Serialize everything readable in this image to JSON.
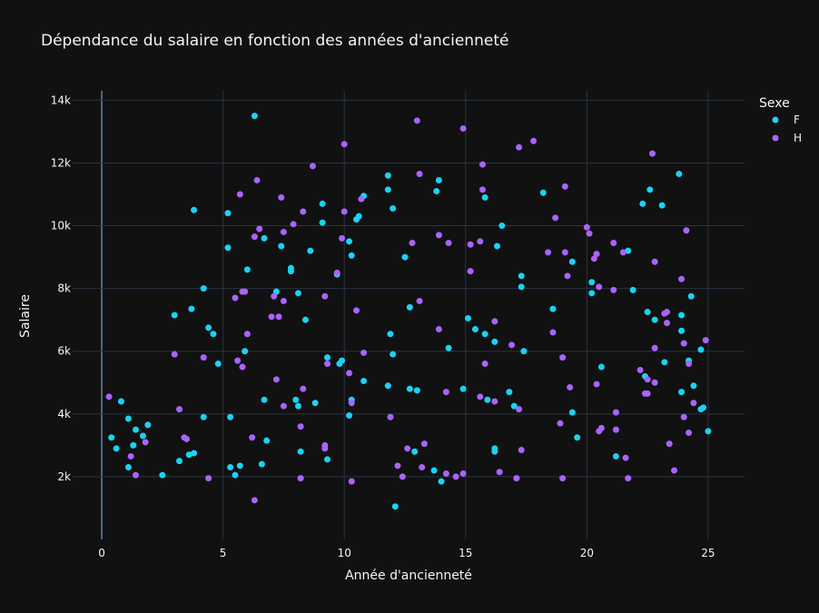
{
  "chart_data": {
    "type": "scatter",
    "title": "Dépendance du salaire en fonction des années d'ancienneté",
    "xlabel": "Année d'ancienneté",
    "ylabel": "Salaire",
    "xlim": [
      -1.2,
      26.5
    ],
    "ylim": [
      0,
      14300
    ],
    "x_ticks": [
      0,
      5,
      10,
      15,
      20,
      25
    ],
    "x_tick_labels": [
      "0",
      "5",
      "10",
      "15",
      "20",
      "25"
    ],
    "y_ticks": [
      2000,
      4000,
      6000,
      8000,
      10000,
      12000,
      14000
    ],
    "y_tick_labels": [
      "2k",
      "4k",
      "6k",
      "8k",
      "10k",
      "12k",
      "14k"
    ],
    "grid": true,
    "legend": {
      "title": "Sexe",
      "placement": "top-right"
    },
    "series": [
      {
        "name": "F",
        "color": "#19d3f3",
        "points": [
          [
            0.4,
            3250
          ],
          [
            0.6,
            2900
          ],
          [
            0.8,
            4400
          ],
          [
            1.1,
            3850
          ],
          [
            1.1,
            2300
          ],
          [
            1.3,
            3000
          ],
          [
            1.4,
            3500
          ],
          [
            1.7,
            3300
          ],
          [
            1.9,
            3650
          ],
          [
            2.5,
            2050
          ],
          [
            3,
            7150
          ],
          [
            3.2,
            2500
          ],
          [
            3.6,
            2700
          ],
          [
            3.7,
            7350
          ],
          [
            3.8,
            10500
          ],
          [
            3.8,
            2750
          ],
          [
            4.2,
            8000
          ],
          [
            4.2,
            3900
          ],
          [
            4.4,
            6750
          ],
          [
            4.6,
            6550
          ],
          [
            4.8,
            5600
          ],
          [
            5.2,
            10400
          ],
          [
            5.2,
            9300
          ],
          [
            5.3,
            3900
          ],
          [
            5.3,
            2300
          ],
          [
            5.5,
            2050
          ],
          [
            5.7,
            2350
          ],
          [
            5.9,
            6000
          ],
          [
            6,
            8600
          ],
          [
            6.3,
            13500
          ],
          [
            6.6,
            2400
          ],
          [
            6.7,
            9600
          ],
          [
            6.7,
            4450
          ],
          [
            6.8,
            3150
          ],
          [
            7.2,
            7900
          ],
          [
            7.4,
            9350
          ],
          [
            7.8,
            8650
          ],
          [
            7.8,
            8550
          ],
          [
            8,
            4450
          ],
          [
            8.1,
            7850
          ],
          [
            8.1,
            4250
          ],
          [
            8.2,
            2800
          ],
          [
            8.4,
            7000
          ],
          [
            8.6,
            9200
          ],
          [
            8.8,
            4350
          ],
          [
            9.1,
            10700
          ],
          [
            9.1,
            10100
          ],
          [
            9.3,
            5800
          ],
          [
            9.3,
            2550
          ],
          [
            9.7,
            8450
          ],
          [
            9.8,
            5600
          ],
          [
            9.9,
            5700
          ],
          [
            10.2,
            9500
          ],
          [
            10.2,
            3950
          ],
          [
            10.3,
            9050
          ],
          [
            10.3,
            4450
          ],
          [
            10.5,
            10200
          ],
          [
            10.6,
            10300
          ],
          [
            10.8,
            10950
          ],
          [
            10.8,
            5050
          ],
          [
            11.8,
            11600
          ],
          [
            11.8,
            11150
          ],
          [
            11.8,
            4900
          ],
          [
            11.9,
            6550
          ],
          [
            12,
            10550
          ],
          [
            12,
            5900
          ],
          [
            12.1,
            1050
          ],
          [
            12.5,
            9000
          ],
          [
            12.7,
            7400
          ],
          [
            12.7,
            4800
          ],
          [
            12.9,
            2800
          ],
          [
            13,
            4750
          ],
          [
            13.7,
            2200
          ],
          [
            13.8,
            11100
          ],
          [
            13.9,
            11450
          ],
          [
            14,
            1850
          ],
          [
            14.3,
            6100
          ],
          [
            14.9,
            4800
          ],
          [
            15.1,
            7050
          ],
          [
            15.4,
            6700
          ],
          [
            15.8,
            6550
          ],
          [
            15.8,
            10900
          ],
          [
            15.9,
            4450
          ],
          [
            16.2,
            6300
          ],
          [
            16.2,
            2900
          ],
          [
            16.2,
            2800
          ],
          [
            16.3,
            9350
          ],
          [
            16.5,
            10000
          ],
          [
            16.8,
            4700
          ],
          [
            17,
            4250
          ],
          [
            17.3,
            8400
          ],
          [
            17.3,
            8050
          ],
          [
            17.4,
            6000
          ],
          [
            18.2,
            11050
          ],
          [
            18.6,
            7350
          ],
          [
            19.4,
            4050
          ],
          [
            19.4,
            8850
          ],
          [
            19.6,
            3250
          ],
          [
            20.2,
            8200
          ],
          [
            20.2,
            7850
          ],
          [
            20.6,
            5500
          ],
          [
            21.2,
            2650
          ],
          [
            21.7,
            9200
          ],
          [
            21.9,
            7950
          ],
          [
            22.3,
            10700
          ],
          [
            22.4,
            5200
          ],
          [
            22.5,
            7250
          ],
          [
            22.6,
            11150
          ],
          [
            22.8,
            7000
          ],
          [
            23.1,
            10650
          ],
          [
            23.2,
            5650
          ],
          [
            23.8,
            11650
          ],
          [
            23.9,
            7150
          ],
          [
            23.9,
            4700
          ],
          [
            23.9,
            6650
          ],
          [
            24.2,
            5700
          ],
          [
            24.3,
            7750
          ],
          [
            24.4,
            4900
          ],
          [
            24.7,
            6050
          ],
          [
            24.7,
            4150
          ],
          [
            24.8,
            4200
          ],
          [
            25,
            3450
          ]
        ]
      },
      {
        "name": "H",
        "color": "#ab63fa",
        "points": [
          [
            0.3,
            4550
          ],
          [
            1.2,
            2650
          ],
          [
            1.4,
            2050
          ],
          [
            1.8,
            3100
          ],
          [
            3,
            5900
          ],
          [
            3.2,
            4150
          ],
          [
            3.4,
            3250
          ],
          [
            3.5,
            3200
          ],
          [
            4.2,
            5800
          ],
          [
            4.4,
            1950
          ],
          [
            5.5,
            7700
          ],
          [
            5.6,
            5700
          ],
          [
            5.7,
            11000
          ],
          [
            5.8,
            5500
          ],
          [
            5.8,
            7900
          ],
          [
            5.9,
            7900
          ],
          [
            6,
            6550
          ],
          [
            6.2,
            3250
          ],
          [
            6.3,
            1250
          ],
          [
            6.3,
            9650
          ],
          [
            6.4,
            11450
          ],
          [
            6.5,
            9900
          ],
          [
            7,
            7100
          ],
          [
            7.1,
            7750
          ],
          [
            7.2,
            5100
          ],
          [
            7.3,
            7100
          ],
          [
            7.4,
            10900
          ],
          [
            7.5,
            9800
          ],
          [
            7.5,
            7600
          ],
          [
            7.5,
            4250
          ],
          [
            7.9,
            10050
          ],
          [
            8.2,
            1950
          ],
          [
            8.2,
            3600
          ],
          [
            8.3,
            4800
          ],
          [
            8.3,
            10450
          ],
          [
            8.7,
            11900
          ],
          [
            9.2,
            7750
          ],
          [
            9.2,
            3000
          ],
          [
            9.2,
            2900
          ],
          [
            9.3,
            5600
          ],
          [
            9.7,
            8500
          ],
          [
            9.9,
            9600
          ],
          [
            10,
            10450
          ],
          [
            10,
            12600
          ],
          [
            10.2,
            5300
          ],
          [
            10.3,
            4350
          ],
          [
            10.3,
            1850
          ],
          [
            10.5,
            7300
          ],
          [
            10.7,
            10850
          ],
          [
            10.8,
            5950
          ],
          [
            11.9,
            3900
          ],
          [
            12.2,
            2350
          ],
          [
            12.4,
            2000
          ],
          [
            12.6,
            2900
          ],
          [
            12.8,
            9450
          ],
          [
            13,
            13350
          ],
          [
            13.1,
            11650
          ],
          [
            13.1,
            7600
          ],
          [
            13.2,
            2300
          ],
          [
            13.3,
            3050
          ],
          [
            13.9,
            9700
          ],
          [
            13.9,
            6700
          ],
          [
            14.2,
            4700
          ],
          [
            14.2,
            2100
          ],
          [
            14.3,
            9450
          ],
          [
            14.6,
            2000
          ],
          [
            14.9,
            13100
          ],
          [
            14.9,
            2100
          ],
          [
            15.2,
            9400
          ],
          [
            15.2,
            8550
          ],
          [
            15.6,
            4550
          ],
          [
            15.6,
            9500
          ],
          [
            15.7,
            11950
          ],
          [
            15.7,
            11150
          ],
          [
            15.8,
            5600
          ],
          [
            16.2,
            6950
          ],
          [
            16.2,
            4400
          ],
          [
            16.4,
            2150
          ],
          [
            16.9,
            6200
          ],
          [
            17.1,
            1950
          ],
          [
            17.2,
            12500
          ],
          [
            17.2,
            4150
          ],
          [
            17.3,
            2850
          ],
          [
            17.8,
            12700
          ],
          [
            18.4,
            9150
          ],
          [
            18.6,
            6600
          ],
          [
            18.7,
            10250
          ],
          [
            18.9,
            3700
          ],
          [
            19,
            1950
          ],
          [
            19,
            5800
          ],
          [
            19.1,
            11250
          ],
          [
            19.1,
            9150
          ],
          [
            19.2,
            8400
          ],
          [
            19.3,
            4850
          ],
          [
            20,
            9950
          ],
          [
            20.1,
            9750
          ],
          [
            20.3,
            8950
          ],
          [
            20.4,
            9100
          ],
          [
            20.4,
            4950
          ],
          [
            20.5,
            8050
          ],
          [
            20.5,
            3450
          ],
          [
            20.6,
            3550
          ],
          [
            21.1,
            9450
          ],
          [
            21.1,
            7950
          ],
          [
            21.2,
            3500
          ],
          [
            21.2,
            4050
          ],
          [
            21.5,
            9150
          ],
          [
            21.6,
            2600
          ],
          [
            21.7,
            1950
          ],
          [
            22.2,
            5400
          ],
          [
            22.4,
            4650
          ],
          [
            22.5,
            4650
          ],
          [
            22.5,
            5100
          ],
          [
            22.7,
            12300
          ],
          [
            22.8,
            6100
          ],
          [
            22.8,
            8850
          ],
          [
            22.8,
            5000
          ],
          [
            23.2,
            7200
          ],
          [
            23.3,
            7250
          ],
          [
            23.3,
            6900
          ],
          [
            23.4,
            3050
          ],
          [
            23.6,
            2200
          ],
          [
            23.9,
            8300
          ],
          [
            24,
            3900
          ],
          [
            24,
            6250
          ],
          [
            24.1,
            9850
          ],
          [
            24.2,
            5600
          ],
          [
            24.2,
            3400
          ],
          [
            24.4,
            4350
          ],
          [
            24.9,
            6350
          ]
        ]
      }
    ]
  }
}
